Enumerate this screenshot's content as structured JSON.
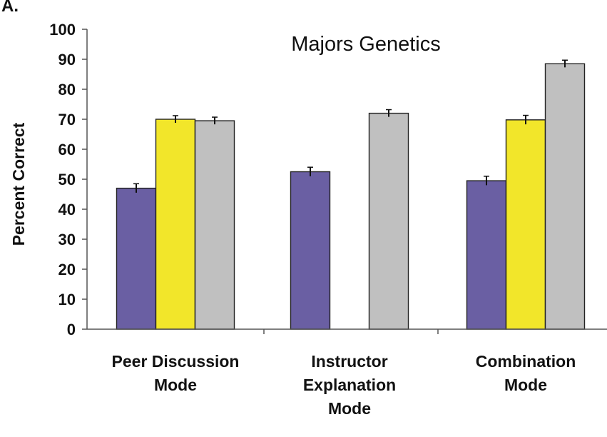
{
  "panel_label": "A.",
  "chart_data": {
    "type": "bar",
    "title": "Majors Genetics",
    "ylabel": "Percent Correct",
    "xlabel": "",
    "ylim": [
      0,
      100
    ],
    "yticks": [
      0,
      10,
      20,
      30,
      40,
      50,
      60,
      70,
      80,
      90,
      100
    ],
    "grid": false,
    "legend": "none",
    "categories": [
      [
        "Peer Discussion",
        "Mode"
      ],
      [
        "Instructor",
        "Explanation",
        "Mode"
      ],
      [
        "Combination",
        "Mode"
      ]
    ],
    "series": [
      {
        "color": "#6a5fa3",
        "values": [
          47,
          52.5,
          49.5
        ],
        "errors": [
          1.5,
          1.5,
          1.5
        ]
      },
      {
        "color": "#f2e62a",
        "values": [
          70,
          null,
          69.8
        ],
        "errors": [
          1.2,
          null,
          1.5
        ]
      },
      {
        "color": "#c0c0c0",
        "values": [
          69.5,
          72,
          88.5
        ],
        "errors": [
          1.2,
          1.2,
          1.2
        ]
      }
    ]
  }
}
